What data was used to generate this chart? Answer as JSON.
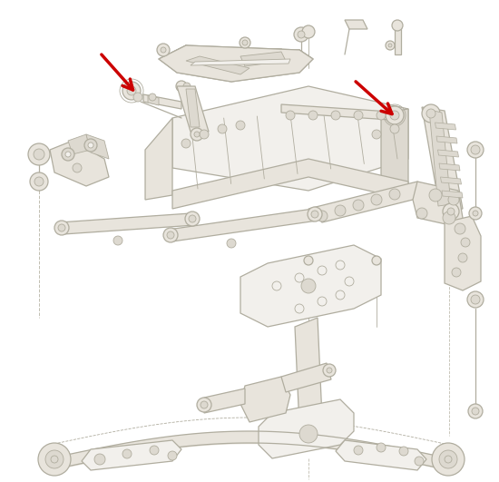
{
  "background_color": "#ffffff",
  "line_color": "#b0ad9f",
  "fill_light": "#f2f0ec",
  "fill_mid": "#e8e4dc",
  "fill_dark": "#ddd9d0",
  "arrow_color": "#cc0000",
  "figsize": [
    5.5,
    5.31
  ],
  "dpi": 100
}
